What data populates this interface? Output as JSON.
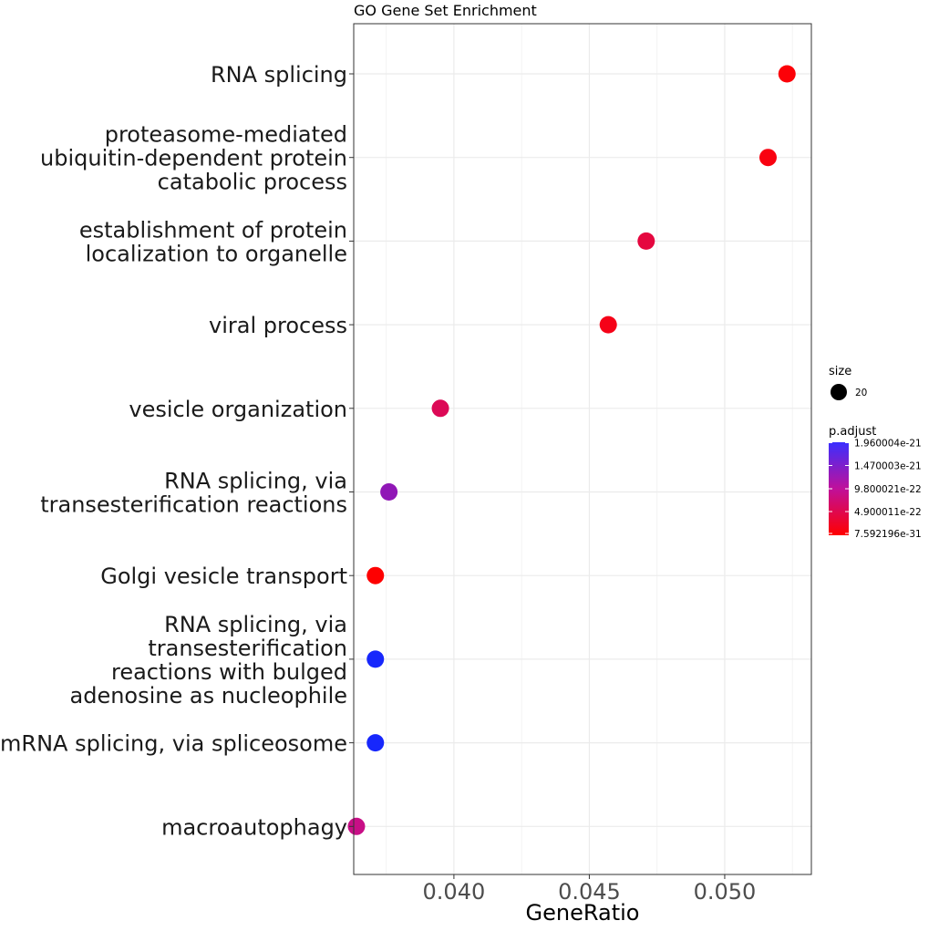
{
  "chart_data": {
    "type": "scatter",
    "title": "GO Gene Set Enrichment",
    "xlabel": "GeneRatio",
    "ylabel": "",
    "xlim": [
      0.0363,
      0.0532
    ],
    "xticks": [
      0.04,
      0.045,
      0.05
    ],
    "xtick_labels": [
      "0.040",
      "0.045",
      "0.050"
    ],
    "grid": true,
    "categories": [
      "RNA splicing",
      "proteasome-mediated ubiquitin-dependent protein catabolic process",
      "establishment of protein localization to organelle",
      "viral process",
      "vesicle organization",
      "RNA splicing, via transesterification reactions",
      "Golgi vesicle transport",
      "RNA splicing, via transesterification reactions with bulged adenosine as nucleophile",
      "mRNA splicing, via spliceosome",
      "macroautophagy"
    ],
    "category_lines": [
      [
        "RNA splicing"
      ],
      [
        "proteasome-mediated",
        "ubiquitin-dependent protein",
        "catabolic process"
      ],
      [
        "establishment of protein",
        "localization to organelle"
      ],
      [
        "viral process"
      ],
      [
        "vesicle organization"
      ],
      [
        "RNA splicing, via",
        "transesterification reactions"
      ],
      [
        "Golgi vesicle transport"
      ],
      [
        "RNA splicing, via",
        "transesterification",
        "reactions with bulged",
        "adenosine as nucleophile"
      ],
      [
        "mRNA splicing, via spliceosome"
      ],
      [
        "macroautophagy"
      ]
    ],
    "x": [
      0.0523,
      0.0516,
      0.0471,
      0.0457,
      0.0395,
      0.0376,
      0.0371,
      0.0371,
      0.0371,
      0.0364
    ],
    "p_adjust": [
      5e-23,
      1e-22,
      4e-22,
      1.5e-22,
      5.5e-22,
      1.25e-21,
      8e-24,
      1.93e-21,
      1.93e-21,
      8.5e-22
    ],
    "size_values": [
      20,
      20,
      20,
      20,
      20,
      20,
      20,
      20,
      20,
      20
    ],
    "legend": {
      "position": "right",
      "size_title": "size",
      "size_entries": [
        "20"
      ],
      "color_title": "p.adjust",
      "color_labels": [
        "1.960004e-21",
        "1.470003e-21",
        "9.800021e-22",
        "4.900011e-22",
        "7.592196e-31"
      ],
      "color_values": [
        1.960004e-21,
        1.470003e-21,
        9.800021e-22,
        4.900011e-22,
        7.592196e-31
      ],
      "color_low": "#ff0000",
      "color_high": "#0000ff"
    }
  }
}
